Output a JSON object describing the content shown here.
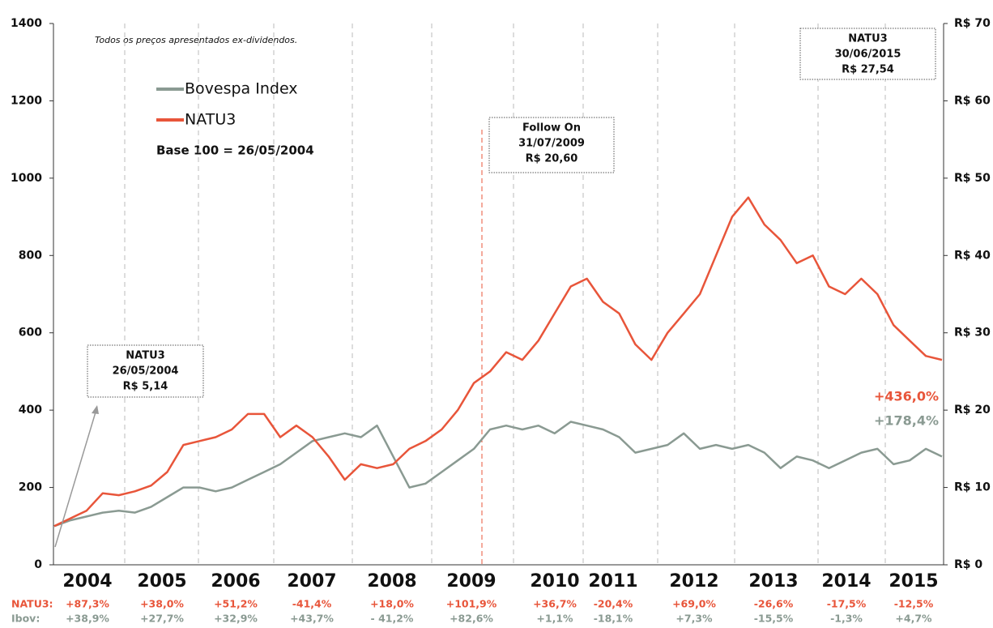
{
  "chart_data": {
    "type": "line",
    "subtitle": "Todos os preços apresentados ex-dividendos.",
    "base_note": "Base 100 = 26/05/2004",
    "ylim": [
      0,
      1400
    ],
    "yticks": [
      0,
      200,
      400,
      600,
      800,
      1000,
      1200,
      1400
    ],
    "y2lim": [
      0,
      70
    ],
    "y2ticks": [
      {
        "value": 0,
        "label": "R$ 0"
      },
      {
        "value": 10,
        "label": "R$ 10"
      },
      {
        "value": 20,
        "label": "R$ 20"
      },
      {
        "value": 30,
        "label": "R$ 30"
      },
      {
        "value": 40,
        "label": "R$ 40"
      },
      {
        "value": 50,
        "label": "R$ 50"
      },
      {
        "value": 60,
        "label": "R$ 60"
      },
      {
        "value": 70,
        "label": "R$ 70"
      }
    ],
    "years": [
      "2004",
      "2005",
      "2006",
      "2007",
      "2008",
      "2009",
      "2010",
      "2011",
      "2012",
      "2013",
      "2014",
      "2015"
    ],
    "series": [
      {
        "name": "Bovespa Index",
        "color": "#8a9a92",
        "values": [
          100,
          115,
          125,
          135,
          140,
          135,
          150,
          175,
          200,
          200,
          190,
          200,
          220,
          240,
          260,
          290,
          320,
          330,
          340,
          330,
          360,
          280,
          200,
          210,
          240,
          270,
          300,
          350,
          360,
          350,
          360,
          340,
          370,
          360,
          350,
          330,
          290,
          300,
          310,
          340,
          300,
          310,
          300,
          310,
          290,
          250,
          280,
          270,
          250,
          270,
          290,
          300,
          260,
          270,
          300,
          280
        ]
      },
      {
        "name": "NATU3",
        "color": "#e8553a",
        "values": [
          100,
          120,
          140,
          185,
          180,
          190,
          205,
          240,
          310,
          320,
          330,
          350,
          390,
          390,
          330,
          360,
          330,
          280,
          220,
          260,
          250,
          260,
          300,
          320,
          350,
          400,
          470,
          500,
          550,
          530,
          580,
          650,
          720,
          740,
          680,
          650,
          570,
          530,
          600,
          650,
          700,
          800,
          900,
          950,
          880,
          840,
          780,
          800,
          720,
          700,
          740,
          700,
          620,
          580,
          540,
          530
        ]
      }
    ],
    "end_labels": [
      "+178,4%",
      "+436,0%"
    ],
    "annotations": [
      {
        "lines": [
          "NATU3",
          "26/05/2004",
          "R$ 5,14"
        ]
      },
      {
        "lines": [
          "Follow On",
          "31/07/2009",
          "R$ 20,60"
        ]
      },
      {
        "lines": [
          "NATU3",
          "30/06/2015",
          "R$ 27,54"
        ]
      }
    ],
    "returns": [
      {
        "name": "NATU3:",
        "color": "#e8553a",
        "values": [
          "+87,3%",
          "+38,0%",
          "+51,2%",
          "-41,4%",
          "+18,0%",
          "+101,9%",
          "+36,7%",
          "-20,4%",
          "+69,0%",
          "-26,6%",
          "-17,5%",
          "-12,5%"
        ]
      },
      {
        "name": "Ibov:",
        "color": "#8a9a92",
        "values": [
          "+38,9%",
          "+27,7%",
          "+32,9%",
          "+43,7%",
          "- 41,2%",
          "+82,6%",
          "+1,1%",
          "-18,1%",
          "+7,3%",
          "-15,5%",
          "-1,3%",
          "+4,7%"
        ]
      }
    ]
  }
}
